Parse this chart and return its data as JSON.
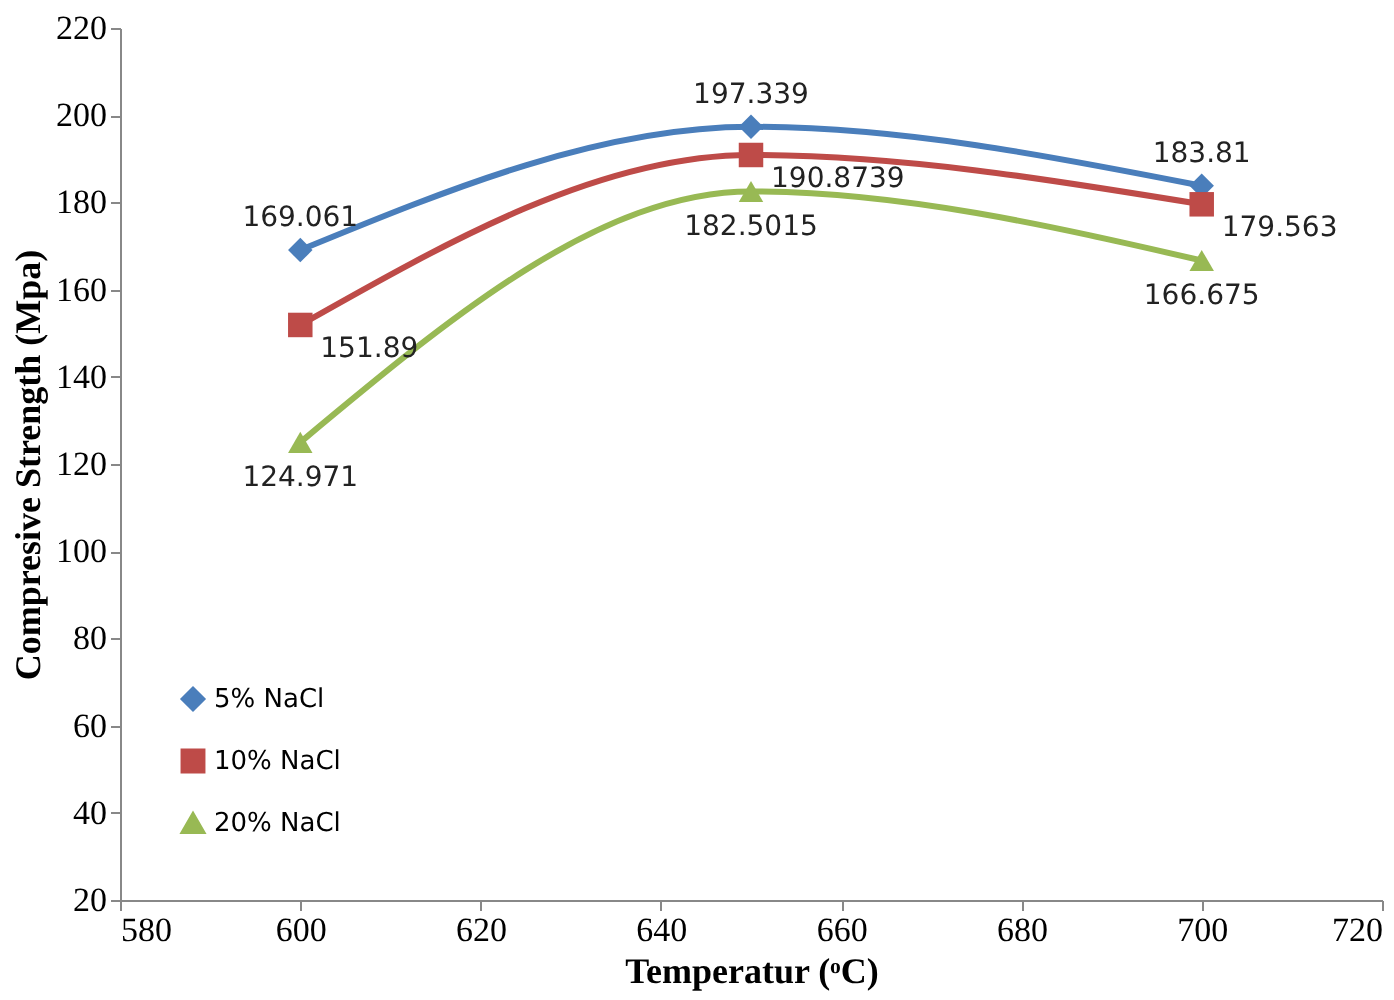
{
  "chart_data": {
    "type": "line",
    "xlabel": "Temperatur (ᵒC)",
    "ylabel": "Compresive Strength (Mpa)",
    "x": [
      600,
      650,
      700
    ],
    "series": [
      {
        "name": "5% NaCl",
        "color": "#4a7ebb",
        "marker": "diamond",
        "values": [
          169.061,
          197.339,
          183.81
        ]
      },
      {
        "name": "10% NaCl",
        "color": "#be4b48",
        "marker": "square",
        "values": [
          151.89,
          190.8739,
          179.563
        ]
      },
      {
        "name": "20% NaCl",
        "color": "#98b954",
        "marker": "triangle",
        "values": [
          124.971,
          182.5015,
          166.675
        ]
      }
    ],
    "xlim": [
      580,
      720
    ],
    "xticks": [
      580,
      600,
      620,
      640,
      660,
      680,
      700,
      720
    ],
    "ylim": [
      20,
      220
    ],
    "yticks": [
      20,
      40,
      60,
      80,
      100,
      120,
      140,
      160,
      180,
      200,
      220
    ],
    "grid": false,
    "legend": "bottom left",
    "data_labels": true,
    "line_style": "solid"
  }
}
